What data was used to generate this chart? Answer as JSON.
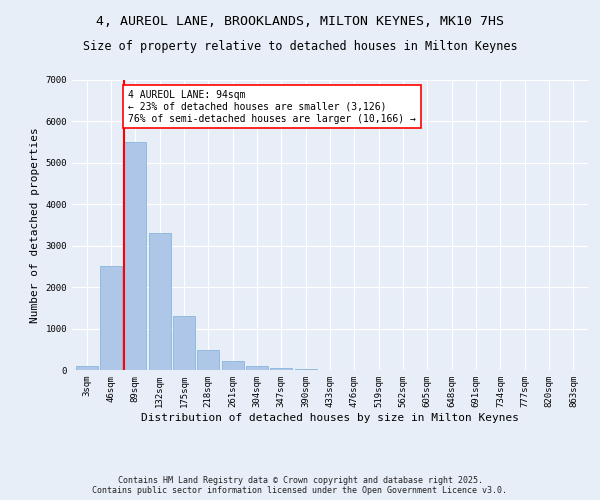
{
  "title_line1": "4, AUREOL LANE, BROOKLANDS, MILTON KEYNES, MK10 7HS",
  "title_line2": "Size of property relative to detached houses in Milton Keynes",
  "xlabel": "Distribution of detached houses by size in Milton Keynes",
  "ylabel": "Number of detached properties",
  "categories": [
    "3sqm",
    "46sqm",
    "89sqm",
    "132sqm",
    "175sqm",
    "218sqm",
    "261sqm",
    "304sqm",
    "347sqm",
    "390sqm",
    "433sqm",
    "476sqm",
    "519sqm",
    "562sqm",
    "605sqm",
    "648sqm",
    "691sqm",
    "734sqm",
    "777sqm",
    "820sqm",
    "863sqm"
  ],
  "values": [
    100,
    2500,
    5500,
    3300,
    1300,
    480,
    220,
    90,
    60,
    30,
    0,
    0,
    0,
    0,
    0,
    0,
    0,
    0,
    0,
    0,
    0
  ],
  "bar_color": "#aec6e8",
  "bar_edge_color": "#7aaed6",
  "vline_x_index": 2,
  "vline_color": "red",
  "annotation_text": "4 AUREOL LANE: 94sqm\n← 23% of detached houses are smaller (3,126)\n76% of semi-detached houses are larger (10,166) →",
  "annotation_box_color": "white",
  "annotation_box_edge_color": "red",
  "ylim": [
    0,
    7000
  ],
  "yticks": [
    0,
    1000,
    2000,
    3000,
    4000,
    5000,
    6000,
    7000
  ],
  "background_color": "#e8eef8",
  "footer_text": "Contains HM Land Registry data © Crown copyright and database right 2025.\nContains public sector information licensed under the Open Government Licence v3.0.",
  "title_fontsize": 9.5,
  "subtitle_fontsize": 8.5,
  "axis_label_fontsize": 8,
  "tick_fontsize": 6.5,
  "annotation_fontsize": 7
}
